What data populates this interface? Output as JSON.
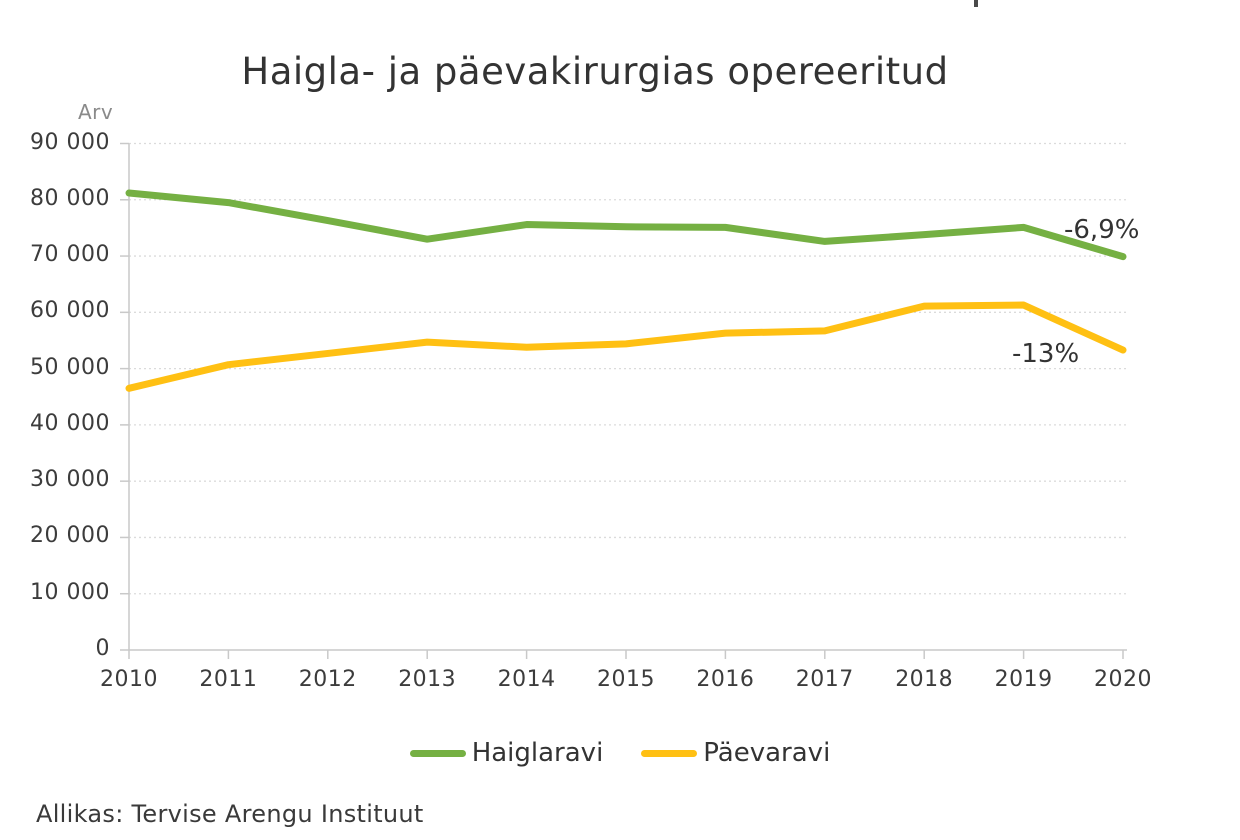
{
  "chart_data": {
    "type": "line",
    "title": "Haigla- ja päevakirurgias opereeritud",
    "y_axis_label": "Arv",
    "xlabel": "",
    "ylabel": "Arv",
    "x": [
      2010,
      2011,
      2012,
      2013,
      2014,
      2015,
      2016,
      2017,
      2018,
      2019,
      2020
    ],
    "x_tick_labels": [
      "2010",
      "2011",
      "2012",
      "2013",
      "2014",
      "2015",
      "2016",
      "2017",
      "2018",
      "2019",
      "2020"
    ],
    "y_tick_labels": [
      "0",
      "10 000",
      "20 000",
      "30 000",
      "40 000",
      "50 000",
      "60 000",
      "70 000",
      "80 000",
      "90 000"
    ],
    "ylim": [
      0,
      90000
    ],
    "ytick_step": 10000,
    "grid": "dotted-horizontal",
    "legend_position": "bottom",
    "series": [
      {
        "name": "Haiglaravi",
        "color": "#75B043",
        "values": [
          81200,
          79500,
          76300,
          73000,
          75600,
          75200,
          75100,
          72600,
          73800,
          75100,
          69900
        ],
        "end_annotation": "-6,9%"
      },
      {
        "name": "Päevaravi",
        "color": "#FFC013",
        "values": [
          46500,
          50700,
          52700,
          54700,
          53800,
          54400,
          56300,
          56700,
          61100,
          61300,
          53300
        ],
        "end_annotation": "-13%"
      }
    ]
  },
  "colors": {
    "grid": "#DBDBDB",
    "axis": "#C9C9C9",
    "text_dark": "#333333",
    "text_muted": "#8A8A8A"
  },
  "source": {
    "label": "Allikas: Tervise Arengu Instituut"
  }
}
